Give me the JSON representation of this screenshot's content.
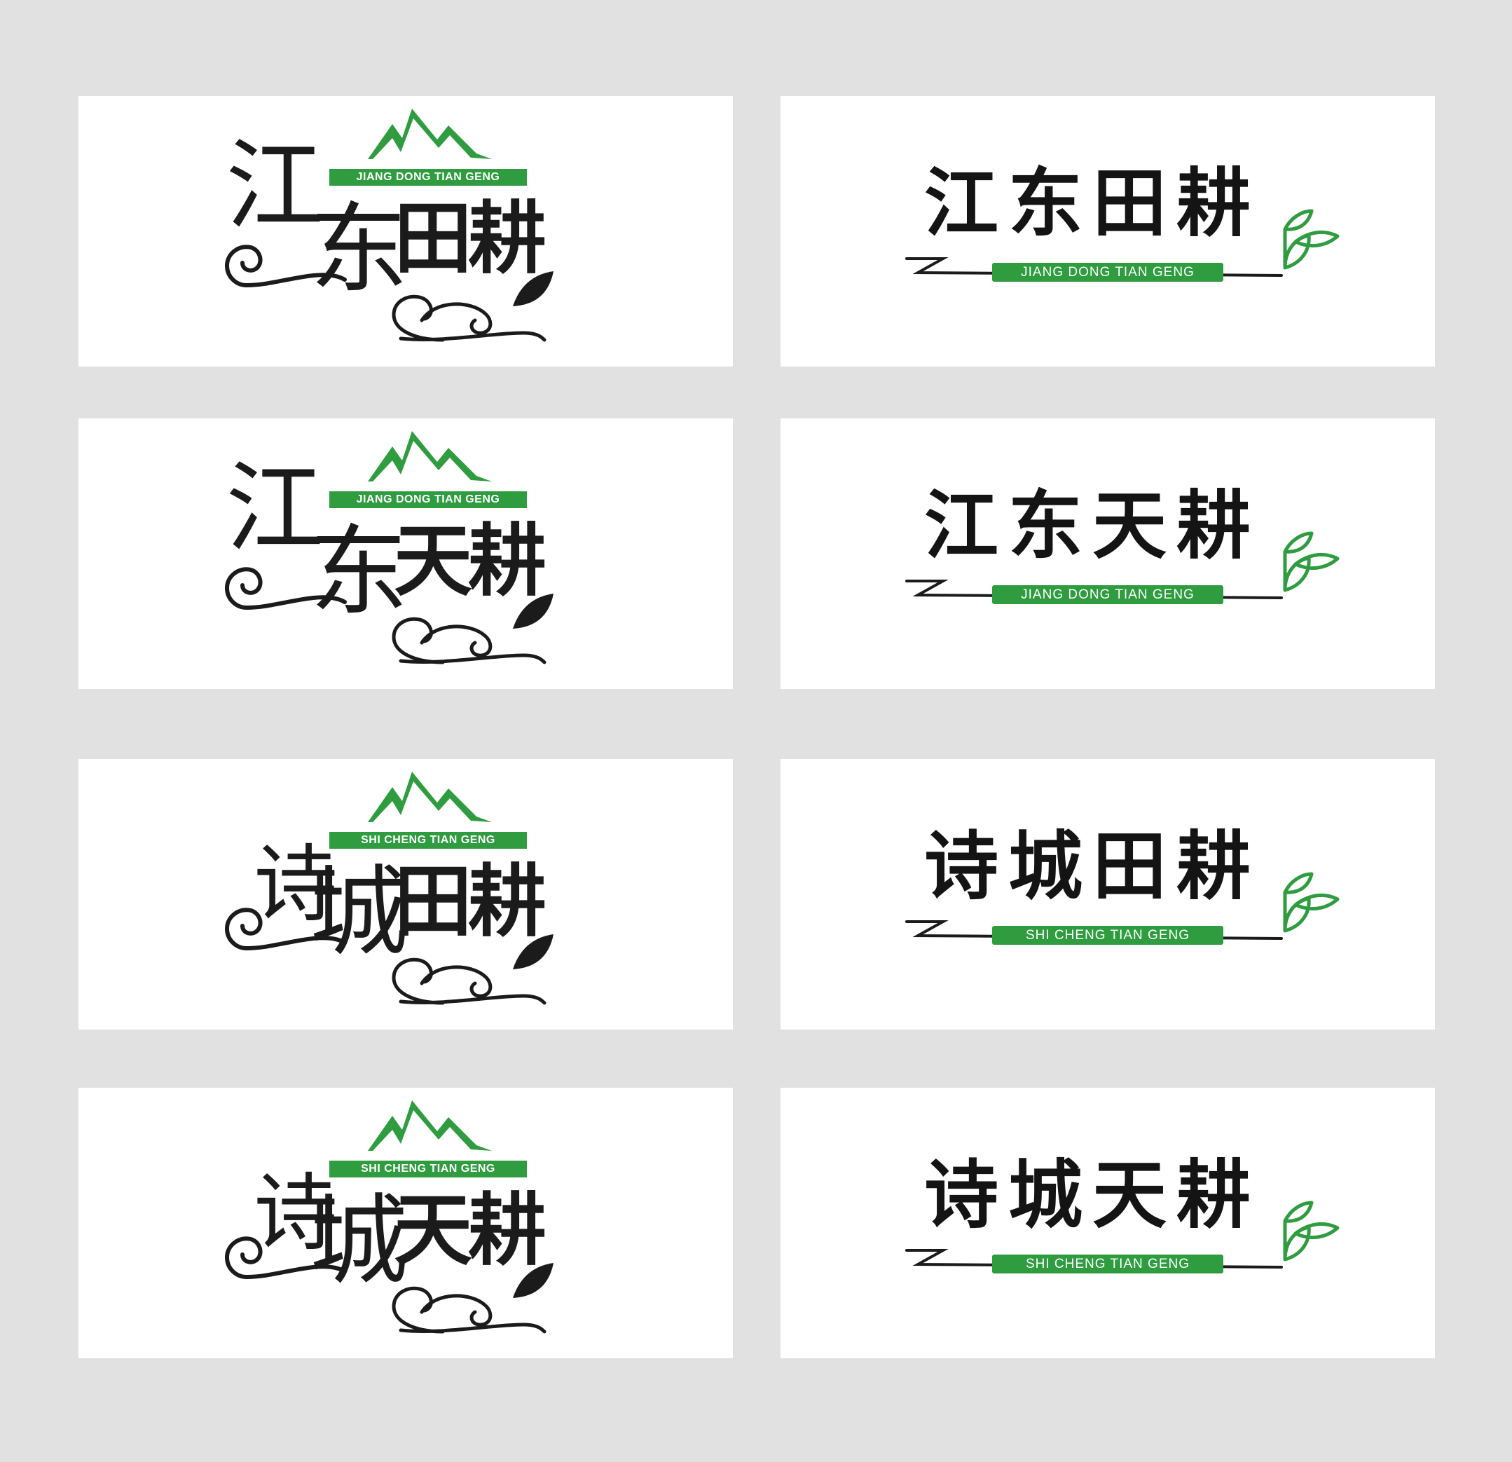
{
  "colors": {
    "background": "#e1e1e1",
    "card": "#ffffff",
    "green": "#2e9c3f",
    "ink": "#1b1b1b"
  },
  "logos": [
    {
      "style": "mountain-swirl",
      "name_chars": [
        "江",
        "东",
        "田耕"
      ],
      "pinyin": "JIANG DONG TIAN GENG"
    },
    {
      "style": "brush-leaf",
      "name": "江东田耕",
      "pinyin": "JIANG DONG TIAN GENG"
    },
    {
      "style": "mountain-swirl",
      "name_chars": [
        "江",
        "东",
        "天耕"
      ],
      "pinyin": "JIANG DONG TIAN GENG"
    },
    {
      "style": "brush-leaf",
      "name": "江东天耕",
      "pinyin": "JIANG DONG TIAN GENG"
    },
    {
      "style": "mountain-swirl",
      "name_chars": [
        "诗",
        "城",
        "田耕"
      ],
      "pinyin": "SHI CHENG TIAN GENG"
    },
    {
      "style": "brush-leaf",
      "name": "诗城田耕",
      "pinyin": "SHI CHENG TIAN GENG"
    },
    {
      "style": "mountain-swirl",
      "name_chars": [
        "诗",
        "城",
        "天耕"
      ],
      "pinyin": "SHI CHENG TIAN GENG"
    },
    {
      "style": "brush-leaf",
      "name": "诗城天耕",
      "pinyin": "SHI CHENG TIAN GENG"
    }
  ]
}
